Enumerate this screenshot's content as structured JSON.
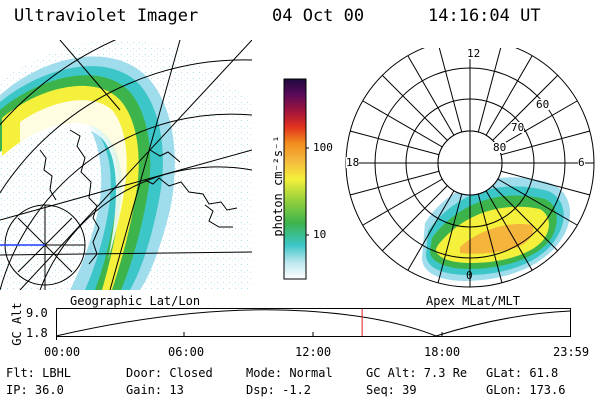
{
  "header": {
    "instrument": "Ultraviolet Imager",
    "date": "04 Oct 00",
    "time": "14:16:04 UT"
  },
  "colorbar": {
    "unit_label": "photon cm⁻²s⁻¹",
    "ticks": [
      "100",
      "10"
    ],
    "colors": [
      "#ffffff",
      "#bfe8f0",
      "#3cc6c8",
      "#3cb44b",
      "#9bd23c",
      "#f5f03c",
      "#f5b43c",
      "#f08c1e",
      "#e0321e",
      "#a0143c",
      "#5a0a5a",
      "#1e0a3c"
    ]
  },
  "left_map": {
    "title": "Geographic Lat/Lon"
  },
  "polar_plot": {
    "title": "Apex MLat/MLT",
    "mlt_labels": {
      "top": "12",
      "left": "18",
      "right": "6",
      "bottom": "0"
    },
    "lat_labels": [
      "60",
      "70",
      "80"
    ]
  },
  "timeline": {
    "ylabel": "GC Alt",
    "ymax": "9.0",
    "ymin": "1.8",
    "xticks": [
      "00:00",
      "06:00",
      "12:00",
      "18:00",
      "23:59"
    ],
    "marker_time_hours": 14.27
  },
  "info": {
    "filter": "Flt: LBHL",
    "ip": "IP: 36.0",
    "door": "Door: Closed",
    "gain": "Gain: 13",
    "mode": "Mode: Normal",
    "dsp": "Dsp:   -1.2",
    "gc_alt": "GC Alt: 7.3 Re",
    "seq": "Seq: 39",
    "glat": "GLat:  61.8",
    "glon": "GLon: 173.6"
  }
}
